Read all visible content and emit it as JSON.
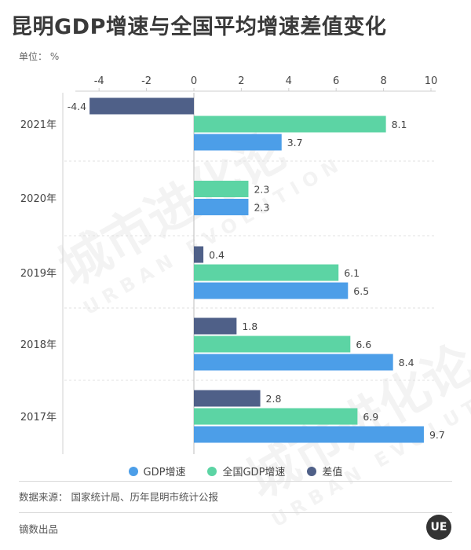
{
  "header": {
    "title": "昆明GDP增速与全国平均增速差值变化",
    "unit": "单位： %"
  },
  "watermark": {
    "text": "城市进化论",
    "sub": "URBAN EVOLUTION"
  },
  "chart_data": {
    "type": "bar",
    "orientation": "horizontal",
    "title": "昆明GDP增速与全国平均增速差值变化",
    "xlabel": "",
    "ylabel": "",
    "xlim": [
      -5,
      10
    ],
    "xticks": [
      -4,
      -2,
      0,
      2,
      4,
      6,
      8,
      10
    ],
    "categories": [
      "2021年",
      "2020年",
      "2019年",
      "2018年",
      "2017年"
    ],
    "series": [
      {
        "name": "差值",
        "color": "#4f6088",
        "values": [
          -4.4,
          null,
          0.4,
          1.8,
          2.8
        ]
      },
      {
        "name": "全国GDP增速",
        "color": "#5cd4a4",
        "values": [
          8.1,
          2.3,
          6.1,
          6.6,
          6.9
        ]
      },
      {
        "name": "GDP增速",
        "color": "#4c9ee8",
        "values": [
          3.7,
          2.3,
          6.5,
          8.4,
          9.7
        ]
      }
    ],
    "legend": [
      {
        "name": "GDP增速",
        "color": "#4c9ee8"
      },
      {
        "name": "全国GDP增速",
        "color": "#5cd4a4"
      },
      {
        "name": "差值",
        "color": "#4f6088"
      }
    ],
    "legend_position": "bottom"
  },
  "footer": {
    "source": "数据来源：  国家统计局、历年昆明市统计公报",
    "producer": "镝数出品",
    "logo": "UE"
  }
}
